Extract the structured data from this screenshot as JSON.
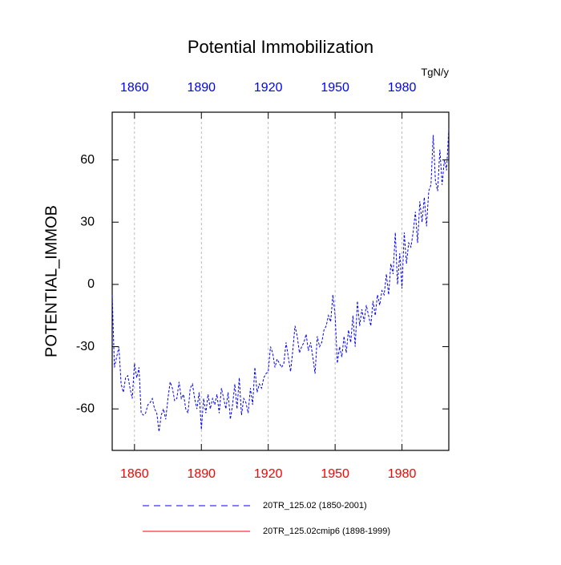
{
  "chart_data": {
    "type": "line",
    "title": "Potential Immobilization",
    "ylabel": "POTENTIAL_IMMOB",
    "top_axis_label": "TgN/y",
    "xlim": [
      1850,
      2001
    ],
    "xticks": [
      1860,
      1890,
      1920,
      1950,
      1980
    ],
    "ylim": [
      -80,
      83
    ],
    "yticks": [
      -60,
      -30,
      0,
      30,
      60
    ],
    "grid": true,
    "top_tick_color": "#0000ff",
    "bottom_tick_color": "#ff0000",
    "series": [
      {
        "name": "20TR_125.02 (1850-2001)",
        "color": "#0000ff",
        "dashed": true,
        "x": [
          1850,
          1851,
          1852,
          1853,
          1854,
          1855,
          1856,
          1857,
          1858,
          1859,
          1860,
          1861,
          1862,
          1863,
          1864,
          1865,
          1866,
          1867,
          1868,
          1869,
          1870,
          1871,
          1872,
          1873,
          1874,
          1875,
          1876,
          1877,
          1878,
          1879,
          1880,
          1881,
          1882,
          1883,
          1884,
          1885,
          1886,
          1887,
          1888,
          1889,
          1890,
          1891,
          1892,
          1893,
          1894,
          1895,
          1896,
          1897,
          1898,
          1899,
          1900,
          1901,
          1902,
          1903,
          1904,
          1905,
          1906,
          1907,
          1908,
          1909,
          1910,
          1911,
          1912,
          1913,
          1914,
          1915,
          1916,
          1917,
          1918,
          1919,
          1920,
          1921,
          1922,
          1923,
          1924,
          1925,
          1926,
          1927,
          1928,
          1929,
          1930,
          1931,
          1932,
          1933,
          1934,
          1935,
          1936,
          1937,
          1938,
          1939,
          1940,
          1941,
          1942,
          1943,
          1944,
          1945,
          1946,
          1947,
          1948,
          1949,
          1950,
          1951,
          1952,
          1953,
          1954,
          1955,
          1956,
          1957,
          1958,
          1959,
          1960,
          1961,
          1962,
          1963,
          1964,
          1965,
          1966,
          1967,
          1968,
          1969,
          1970,
          1971,
          1972,
          1973,
          1974,
          1975,
          1976,
          1977,
          1978,
          1979,
          1980,
          1981,
          1982,
          1983,
          1984,
          1985,
          1986,
          1987,
          1988,
          1989,
          1990,
          1991,
          1992,
          1993,
          1994,
          1995,
          1996,
          1997,
          1998,
          1999,
          2000,
          2001
        ],
        "values": [
          -5,
          -40,
          -35,
          -30,
          -48,
          -52,
          -45,
          -44,
          -50,
          -55,
          -38,
          -45,
          -40,
          -62,
          -63,
          -62,
          -58,
          -57,
          -55,
          -60,
          -62,
          -71,
          -63,
          -60,
          -65,
          -55,
          -47,
          -50,
          -56,
          -55,
          -47,
          -55,
          -53,
          -60,
          -62,
          -50,
          -48,
          -55,
          -60,
          -52,
          -70,
          -55,
          -62,
          -53,
          -60,
          -55,
          -58,
          -53,
          -62,
          -50,
          -55,
          -60,
          -52,
          -65,
          -58,
          -48,
          -60,
          -45,
          -63,
          -55,
          -57,
          -62,
          -50,
          -58,
          -40,
          -52,
          -48,
          -50,
          -45,
          -43,
          -42,
          -30,
          -33,
          -40,
          -36,
          -38,
          -40,
          -38,
          -28,
          -35,
          -42,
          -32,
          -20,
          -25,
          -33,
          -30,
          -28,
          -24,
          -32,
          -28,
          -35,
          -43,
          -25,
          -30,
          -28,
          -22,
          -20,
          -15,
          -18,
          -5,
          -15,
          -38,
          -30,
          -35,
          -25,
          -33,
          -22,
          -28,
          -15,
          -30,
          -8,
          -20,
          -12,
          -18,
          -10,
          -15,
          -20,
          -8,
          -15,
          -5,
          -10,
          -3,
          -5,
          5,
          -5,
          10,
          5,
          25,
          0,
          15,
          -2,
          25,
          10,
          20,
          18,
          25,
          35,
          20,
          40,
          30,
          42,
          28,
          45,
          48,
          72,
          50,
          45,
          65,
          48,
          60,
          55,
          75
        ]
      },
      {
        "name": "20TR_125.02cmip6 (1898-1999)",
        "color": "#ff0000",
        "dashed": false,
        "x": [],
        "values": []
      }
    ]
  }
}
